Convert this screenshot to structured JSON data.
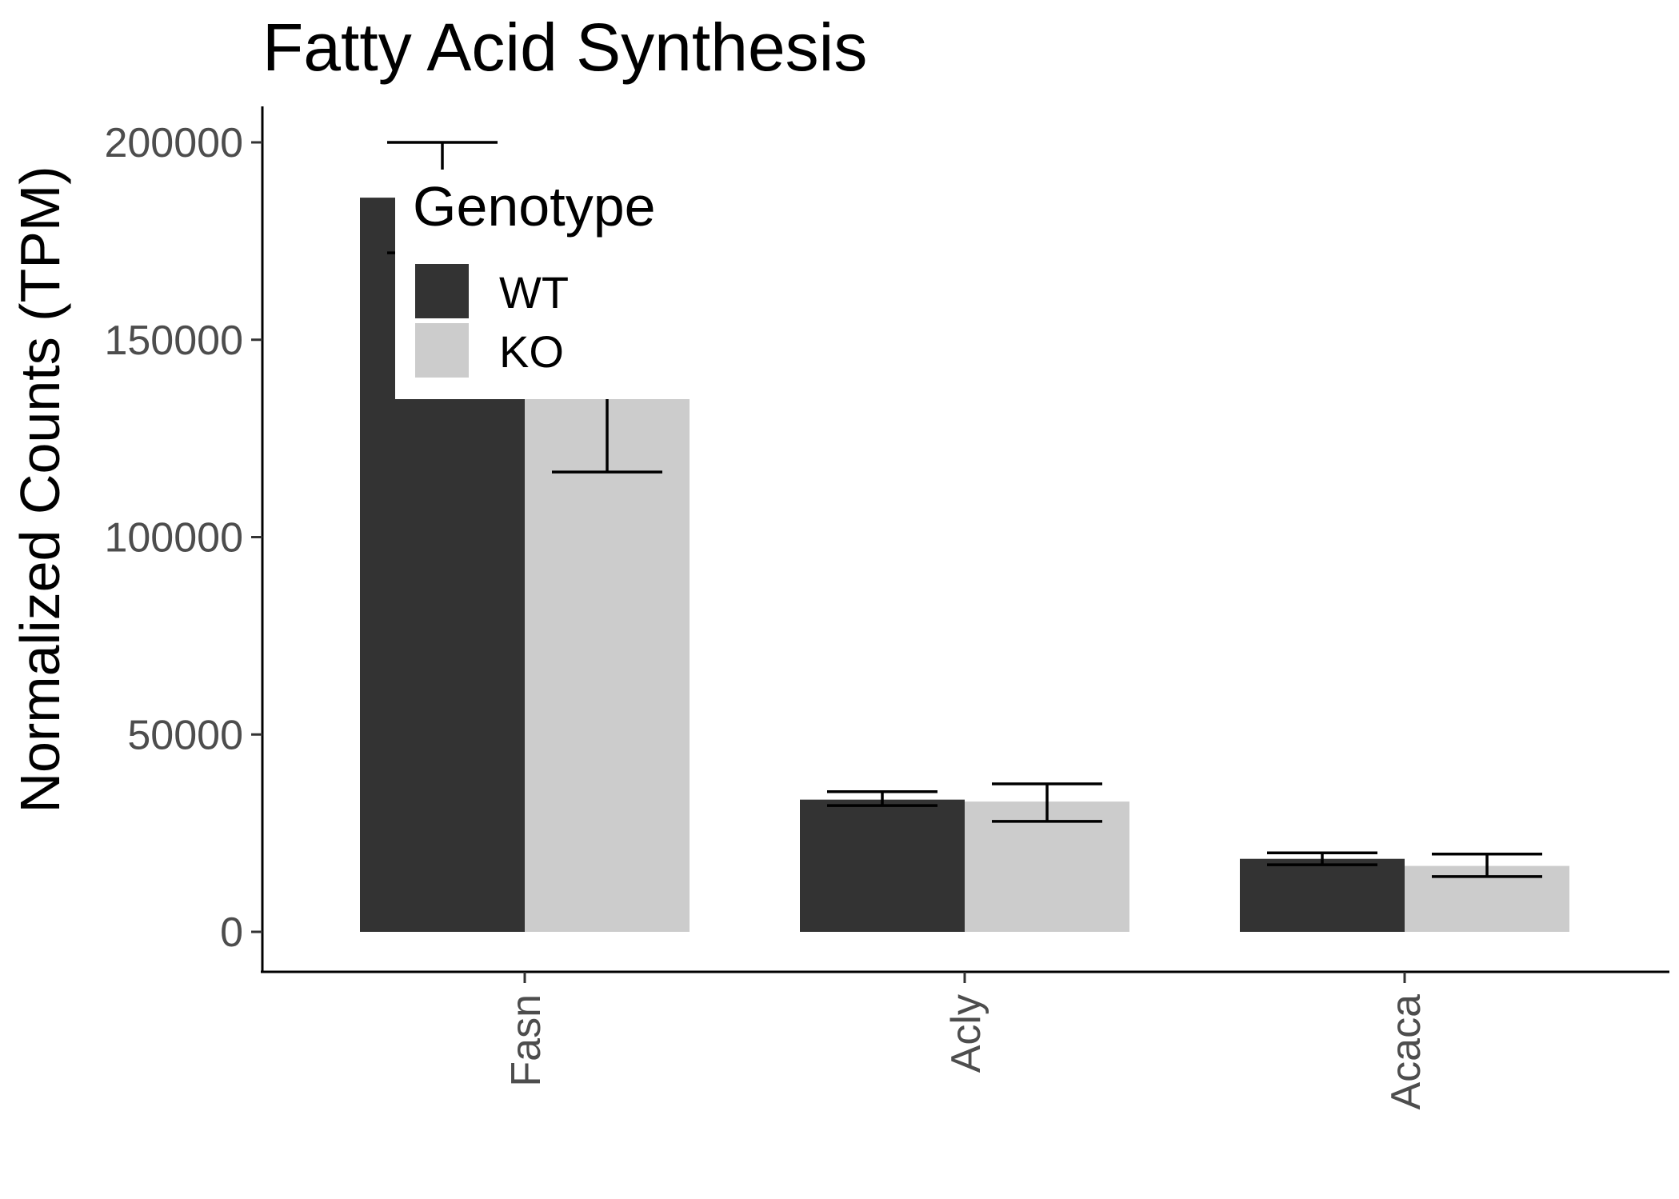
{
  "chart_data": {
    "type": "bar",
    "title": "Fatty Acid Synthesis",
    "xlabel": "",
    "ylabel": "Normalized Counts (TPM)",
    "categories": [
      "Fasn",
      "Acly",
      "Acaca"
    ],
    "series": [
      {
        "name": "WT",
        "color": "#333333",
        "values": [
          186000,
          33500,
          18500
        ],
        "error_low": [
          172000,
          32000,
          17000
        ],
        "error_high": [
          200000,
          35500,
          20000
        ]
      },
      {
        "name": "KO",
        "color": "#cccccc",
        "values": [
          135000,
          33000,
          16700
        ],
        "error_low": [
          116500,
          28000,
          14000
        ],
        "error_high": [
          153000,
          37500,
          19700
        ]
      }
    ],
    "ylim": [
      -10000,
      210000
    ],
    "yticks": [
      0,
      50000,
      100000,
      150000,
      200000
    ],
    "ytick_labels": [
      "0",
      "50000",
      "100000",
      "150000",
      "200000"
    ],
    "grid": false,
    "legend": {
      "title": "Genotype",
      "position": "top-left-inside",
      "entries": [
        "WT",
        "KO"
      ]
    }
  }
}
